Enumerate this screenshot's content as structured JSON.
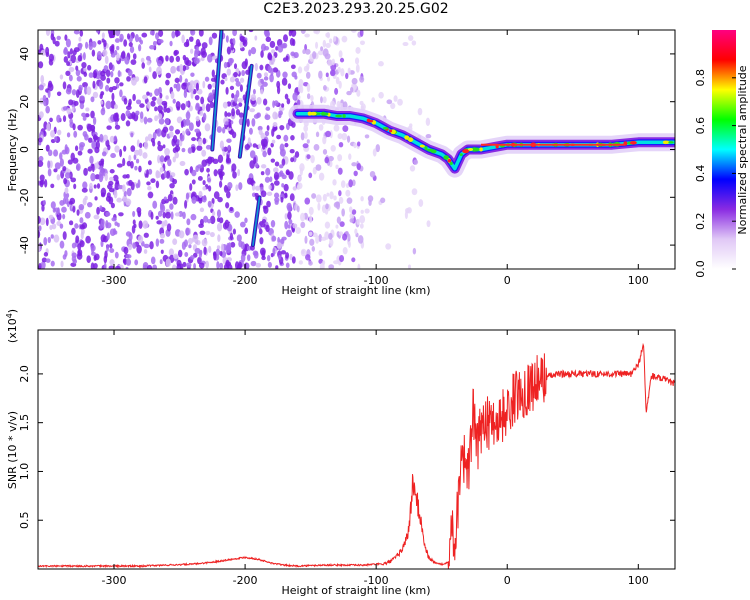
{
  "page": {
    "title": "C2E3.2023.293.20.25.G02"
  },
  "chart_data": [
    {
      "type": "heatmap",
      "title": "C2E3.2023.293.20.25.G02",
      "xlabel": "Height of straight line (km)",
      "ylabel": "Frequency (Hz)",
      "xlim": [
        -358,
        128
      ],
      "ylim": [
        -50,
        50
      ],
      "xticks": [
        -300,
        -200,
        -100,
        0,
        100
      ],
      "yticks": [
        -40,
        -20,
        0,
        20,
        40
      ],
      "xtick_labels": [
        "-300",
        "-200",
        "-100",
        "0",
        "100"
      ],
      "ytick_labels": [
        "-40",
        "-20",
        "0",
        "20",
        "40"
      ],
      "colorbar": {
        "label": "Normalized spectral amplitude",
        "range": [
          0.0,
          1.0
        ],
        "ticks": [
          0.0,
          0.2,
          0.4,
          0.6,
          0.8
        ],
        "tick_labels": [
          "0.0",
          "0.2",
          "0.4",
          "0.6",
          "0.8"
        ],
        "colormap": [
          "#ffffff",
          "#e0c8f6",
          "#8a2be2",
          "#0000ff",
          "#00ffff",
          "#00ff00",
          "#ffff00",
          "#ff0000",
          "#ff0080"
        ]
      },
      "ridge": {
        "x": [
          -160,
          -150,
          -140,
          -130,
          -120,
          -110,
          -100,
          -90,
          -80,
          -70,
          -60,
          -50,
          -45,
          -40,
          -35,
          -30,
          -20,
          -10,
          0,
          20,
          40,
          60,
          80,
          100,
          128
        ],
        "y": [
          15,
          15,
          15,
          14,
          14,
          13,
          11,
          8,
          6,
          3,
          0,
          -2,
          -4,
          -8,
          -2,
          0,
          0,
          1,
          2,
          2,
          2,
          2,
          2,
          3,
          3
        ]
      },
      "slanted_streaks": [
        {
          "x": [
            -225,
            -218
          ],
          "y": [
            0,
            50
          ]
        },
        {
          "x": [
            -204,
            -195
          ],
          "y": [
            -3,
            35
          ]
        },
        {
          "x": [
            -194,
            -189
          ],
          "y": [
            -40,
            -20
          ]
        }
      ]
    },
    {
      "type": "line",
      "xlabel": "Height of straight line (km)",
      "ylabel": "SNR (10 * v/v)",
      "y_multiplier": "(x10",
      "y_multiplier_exp": "4",
      "y_multiplier_close": ")",
      "xlim": [
        -358,
        128
      ],
      "ylim": [
        0,
        2.45
      ],
      "xticks": [
        -300,
        -200,
        -100,
        0,
        100
      ],
      "yticks": [
        0.5,
        1.0,
        1.5,
        2.0
      ],
      "xtick_labels": [
        "-300",
        "-200",
        "-100",
        "0",
        "100"
      ],
      "ytick_labels": [
        "0.5",
        "1.0",
        "1.5",
        "2.0"
      ],
      "color": "#ee2222",
      "series": [
        {
          "x": [
            -358,
            -340,
            -320,
            -300,
            -280,
            -260,
            -240,
            -225,
            -210,
            -200,
            -190,
            -180,
            -170,
            -160,
            -140,
            -120,
            -110,
            -100,
            -95,
            -90,
            -85,
            -80,
            -75,
            -72,
            -69,
            -66,
            -63,
            -60,
            -57,
            -54,
            -51,
            -48,
            -45,
            -42,
            -40,
            -38,
            -35,
            -32,
            -29,
            -26,
            -23,
            -20,
            -17,
            -14,
            -11,
            -8,
            -5,
            -2,
            0,
            5,
            10,
            15,
            20,
            30,
            40,
            60,
            80,
            95,
            100,
            104,
            106,
            110,
            120,
            128
          ],
          "y": [
            0.03,
            0.03,
            0.03,
            0.03,
            0.03,
            0.04,
            0.05,
            0.07,
            0.1,
            0.12,
            0.1,
            0.06,
            0.04,
            0.03,
            0.04,
            0.04,
            0.04,
            0.05,
            0.05,
            0.07,
            0.12,
            0.2,
            0.4,
            0.9,
            0.7,
            0.5,
            0.25,
            0.12,
            0.08,
            0.06,
            0.05,
            0.05,
            0.08,
            0.5,
            0.25,
            0.6,
            1.25,
            1.1,
            1.0,
            1.65,
            1.2,
            1.45,
            1.6,
            1.45,
            1.55,
            1.5,
            1.55,
            1.6,
            1.6,
            1.75,
            1.8,
            1.85,
            1.9,
            1.97,
            2.0,
            2.0,
            2.0,
            2.0,
            2.1,
            2.3,
            1.6,
            1.98,
            1.94,
            1.9
          ]
        }
      ]
    }
  ]
}
